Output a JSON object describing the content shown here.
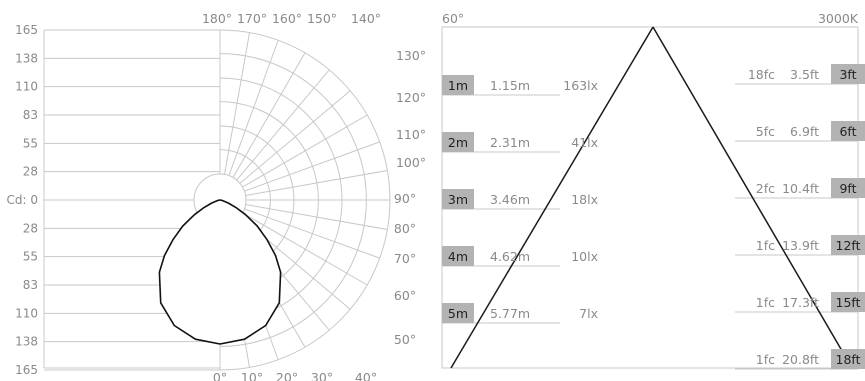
{
  "polar_chart": {
    "label": "Cd:",
    "radial_ticks_top": [
      "165",
      "138",
      "110",
      "83",
      "55",
      "28"
    ],
    "radial_tick_center": "0",
    "radial_ticks_bottom": [
      "28",
      "55",
      "83",
      "110",
      "138",
      "165"
    ],
    "angle_labels": [
      "180°",
      "170°",
      "160°",
      "150°",
      "140°",
      "130°",
      "120°",
      "110°",
      "100°",
      "90°",
      "80°",
      "70°",
      "60°",
      "50°",
      "40°",
      "30°",
      "20°",
      "10°",
      "0°"
    ]
  },
  "cone_chart": {
    "beam_angle": "60°",
    "color_temp": "3000K",
    "rows": [
      {
        "left_unit": "1m",
        "left_dist": "1.15m",
        "left_lux": "163lx",
        "right_fc": "18fc",
        "right_dist": "3.5ft",
        "right_unit": "3ft"
      },
      {
        "left_unit": "2m",
        "left_dist": "2.31m",
        "left_lux": "41lx",
        "right_fc": "5fc",
        "right_dist": "6.9ft",
        "right_unit": "6ft"
      },
      {
        "left_unit": "3m",
        "left_dist": "3.46m",
        "left_lux": "18lx",
        "right_fc": "2fc",
        "right_dist": "10.4ft",
        "right_unit": "9ft"
      },
      {
        "left_unit": "4m",
        "left_dist": "4.62m",
        "left_lux": "10lx",
        "right_fc": "1fc",
        "right_dist": "13.9ft",
        "right_unit": "12ft"
      },
      {
        "left_unit": "5m",
        "left_dist": "5.77m",
        "left_lux": "7lx",
        "right_fc": "1fc",
        "right_dist": "17.3ft",
        "right_unit": "15ft"
      },
      {
        "left_unit": "",
        "left_dist": "",
        "left_lux": "",
        "right_fc": "1fc",
        "right_dist": "20.8ft",
        "right_unit": "18ft"
      }
    ]
  },
  "chart_data": [
    {
      "type": "polar",
      "ylabel": "Cd:",
      "r_ticks": [
        0,
        28,
        55,
        83,
        110,
        138,
        165
      ],
      "rlim": [
        0,
        165
      ],
      "angle_ticks_deg": [
        0,
        10,
        20,
        30,
        40,
        50,
        60,
        70,
        80,
        90,
        100,
        110,
        120,
        130,
        140,
        150,
        160,
        170,
        180
      ],
      "series": [
        {
          "angle_deg": [
            0,
            10,
            20,
            30,
            40,
            45,
            50,
            55,
            60,
            65,
            70,
            80,
            90
          ],
          "candela": [
            165,
            162,
            153,
            136,
            108,
            90,
            70,
            52,
            34,
            20,
            10,
            2,
            0
          ]
        }
      ]
    },
    {
      "type": "table",
      "beam_angle_deg": 60,
      "color_temperature": "3000K",
      "metric": {
        "distance_m": [
          1,
          2,
          3,
          4,
          5
        ],
        "beam_diameter_m": [
          1.15,
          2.31,
          3.46,
          4.62,
          5.77
        ],
        "illuminance_lx": [
          163,
          41,
          18,
          10,
          7
        ]
      },
      "imperial": {
        "distance_ft": [
          3,
          6,
          9,
          12,
          15,
          18
        ],
        "beam_diameter_ft": [
          3.5,
          6.9,
          10.4,
          13.9,
          17.3,
          20.8
        ],
        "illuminance_fc": [
          18,
          5,
          2,
          1,
          1,
          1
        ]
      }
    }
  ],
  "colors": {
    "grid": "#c8c8c8",
    "text": "#8a8a8a",
    "curve": "#111111",
    "badge": "#b3b3b3",
    "badge_text": "#222222",
    "cone": "#1a1a1a"
  }
}
